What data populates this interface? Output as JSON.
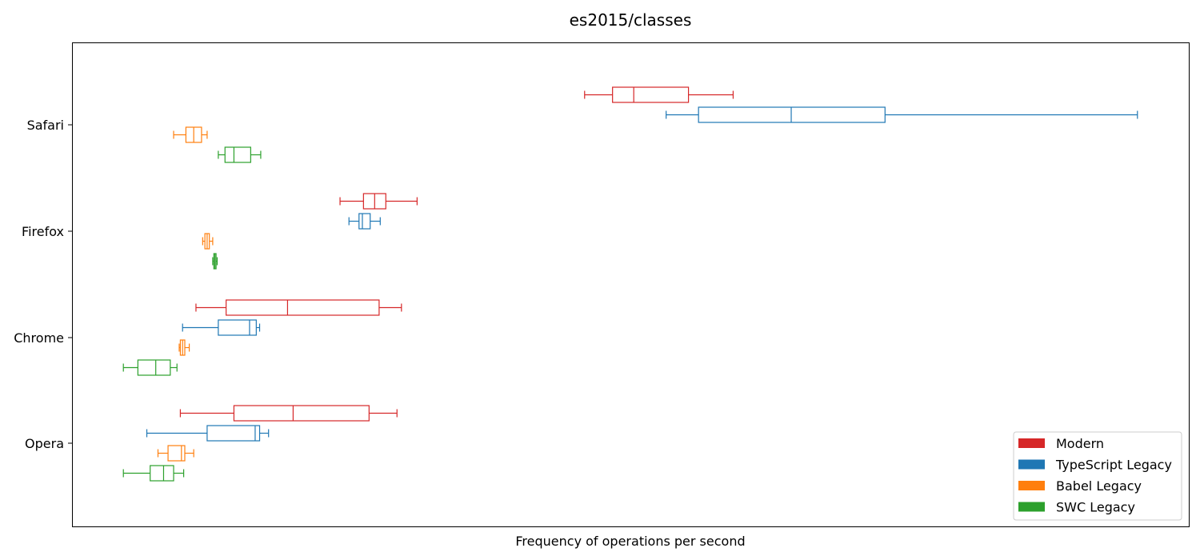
{
  "chart_data": {
    "type": "boxplot",
    "orientation": "horizontal",
    "title": "es2015/classes",
    "xlabel": "Frequency of operations per second",
    "ylabel": "",
    "xlim": [
      0,
      100
    ],
    "x_ticks_shown": false,
    "grid": false,
    "categories": [
      "Safari",
      "Firefox",
      "Chrome",
      "Opera"
    ],
    "legend": {
      "placement": "lower-right"
    },
    "series": [
      {
        "name": "Modern",
        "color": "#d62728",
        "boxes": [
          {
            "category": "Safari",
            "whisker_low": 45.9,
            "q1": 48.4,
            "median": 50.3,
            "q3": 55.2,
            "whisker_high": 59.2
          },
          {
            "category": "Firefox",
            "whisker_low": 24.0,
            "q1": 26.1,
            "median": 27.1,
            "q3": 28.1,
            "whisker_high": 30.9
          },
          {
            "category": "Chrome",
            "whisker_low": 11.1,
            "q1": 13.8,
            "median": 19.3,
            "q3": 27.5,
            "whisker_high": 29.5
          },
          {
            "category": "Opera",
            "whisker_low": 9.7,
            "q1": 14.5,
            "median": 19.8,
            "q3": 26.6,
            "whisker_high": 29.1
          }
        ]
      },
      {
        "name": "TypeScript Legacy",
        "color": "#1f77b4",
        "boxes": [
          {
            "category": "Safari",
            "whisker_low": 53.2,
            "q1": 56.1,
            "median": 64.4,
            "q3": 72.8,
            "whisker_high": 95.4
          },
          {
            "category": "Firefox",
            "whisker_low": 24.8,
            "q1": 25.7,
            "median": 26.0,
            "q3": 26.7,
            "whisker_high": 27.6
          },
          {
            "category": "Chrome",
            "whisker_low": 9.9,
            "q1": 13.1,
            "median": 15.9,
            "q3": 16.5,
            "whisker_high": 16.8
          },
          {
            "category": "Opera",
            "whisker_low": 6.7,
            "q1": 12.1,
            "median": 16.4,
            "q3": 16.8,
            "whisker_high": 17.6
          }
        ]
      },
      {
        "name": "Babel Legacy",
        "color": "#ff7f0e",
        "boxes": [
          {
            "category": "Safari",
            "whisker_low": 9.1,
            "q1": 10.2,
            "median": 10.9,
            "q3": 11.6,
            "whisker_high": 12.1
          },
          {
            "category": "Firefox",
            "whisker_low": 11.7,
            "q1": 11.9,
            "median": 12.1,
            "q3": 12.3,
            "whisker_high": 12.6
          },
          {
            "category": "Chrome",
            "whisker_low": 9.6,
            "q1": 9.7,
            "median": 9.9,
            "q3": 10.1,
            "whisker_high": 10.5
          },
          {
            "category": "Opera",
            "whisker_low": 7.7,
            "q1": 8.6,
            "median": 9.8,
            "q3": 10.1,
            "whisker_high": 10.9
          }
        ]
      },
      {
        "name": "SWC Legacy",
        "color": "#2ca02c",
        "boxes": [
          {
            "category": "Safari",
            "whisker_low": 13.1,
            "q1": 13.7,
            "median": 14.5,
            "q3": 16.0,
            "whisker_high": 16.9
          },
          {
            "category": "Firefox",
            "whisker_low": 12.6,
            "q1": 12.7,
            "median": 12.8,
            "q3": 12.9,
            "whisker_high": 13.0
          },
          {
            "category": "Chrome",
            "whisker_low": 4.6,
            "q1": 5.9,
            "median": 7.5,
            "q3": 8.8,
            "whisker_high": 9.4
          },
          {
            "category": "Opera",
            "whisker_low": 4.6,
            "q1": 7.0,
            "median": 8.2,
            "q3": 9.1,
            "whisker_high": 10.0
          }
        ]
      }
    ]
  }
}
